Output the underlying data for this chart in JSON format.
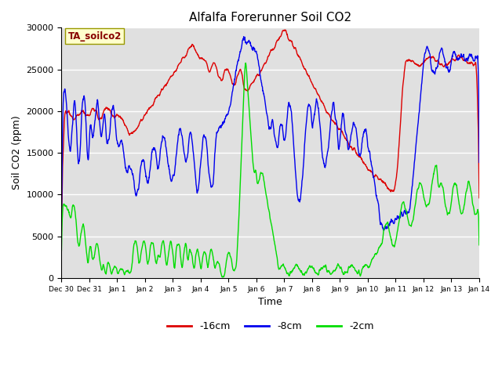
{
  "title": "Alfalfa Forerunner Soil CO2",
  "xlabel": "Time",
  "ylabel": "Soil CO2 (ppm)",
  "ylim": [
    0,
    30000
  ],
  "yticks": [
    0,
    5000,
    10000,
    15000,
    20000,
    25000,
    30000
  ],
  "annotation": "TA_soilco2",
  "legend_labels": [
    "-16cm",
    "-8cm",
    "-2cm"
  ],
  "legend_colors": [
    "#dd0000",
    "#0000ee",
    "#00dd00"
  ],
  "bg_color": "#e0e0e0",
  "xtick_labels": [
    "Dec 30",
    "Dec 31",
    "Jan 1",
    "Jan 2",
    "Jan 3",
    "Jan 4",
    "Jan 5",
    "Jan 6",
    "Jan 7",
    "Jan 8",
    "Jan 9",
    "Jan 10",
    "Jan 11",
    "Jan 12",
    "Jan 13",
    "Jan 14"
  ],
  "num_days": 15
}
